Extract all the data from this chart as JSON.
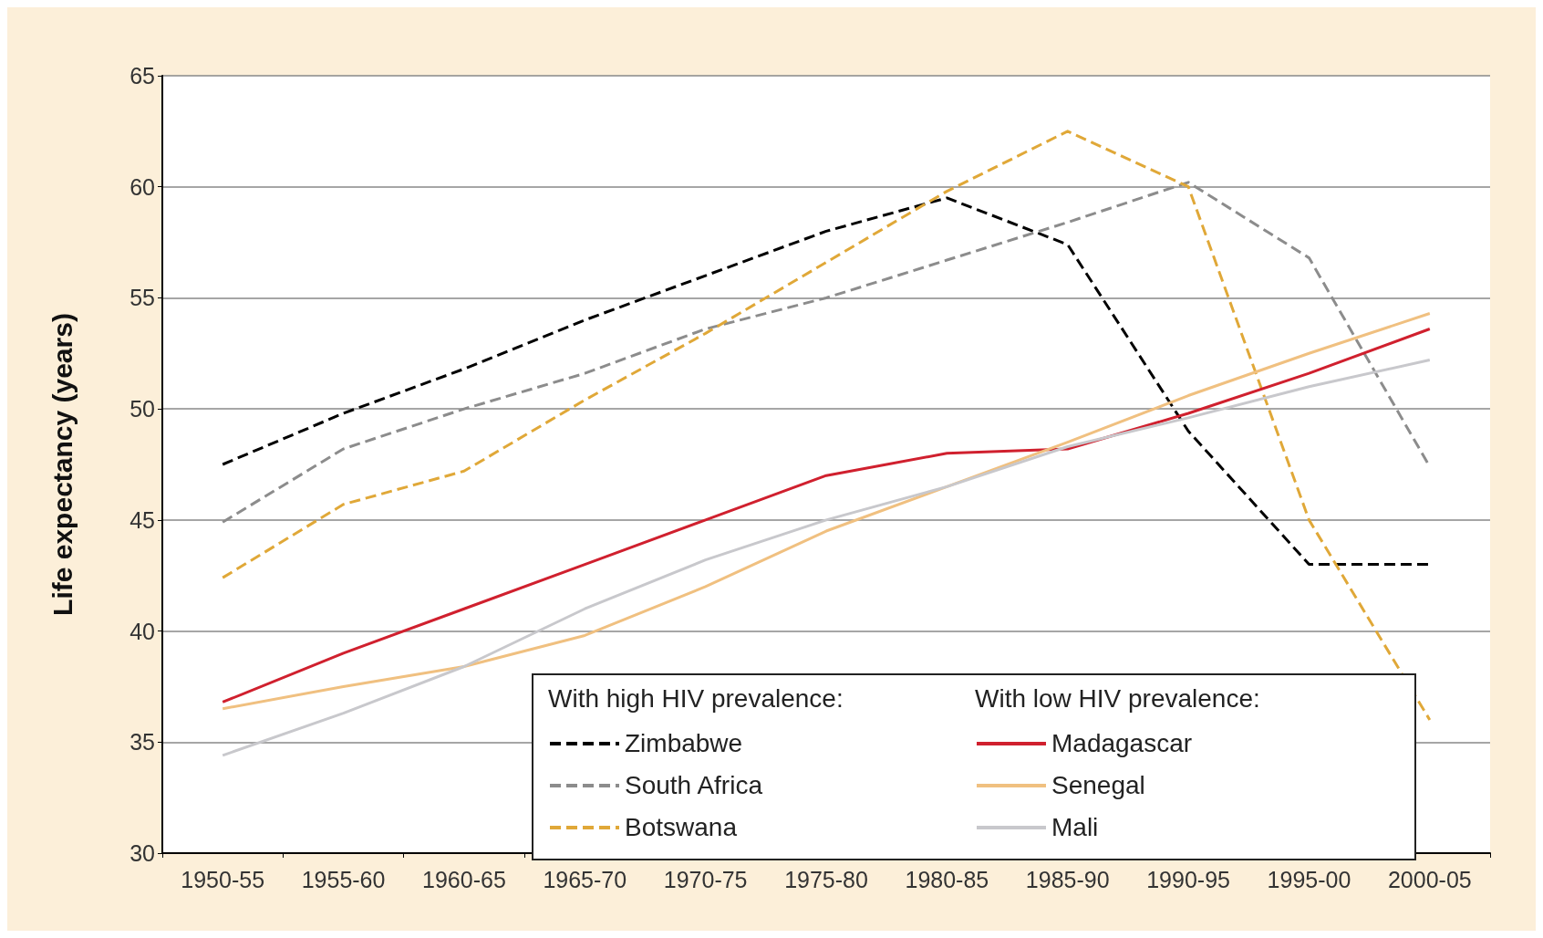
{
  "chart_data": {
    "type": "line",
    "ylabel": "Life expectancy (years)",
    "categories": [
      "1950-55",
      "1955-60",
      "1960-65",
      "1965-70",
      "1970-75",
      "1975-80",
      "1980-85",
      "1985-90",
      "1990-95",
      "1995-00",
      "2000-05"
    ],
    "series": [
      {
        "name": "Zimbabwe",
        "color": "#000000",
        "line_style": "dashed",
        "values": [
          47.5,
          49.8,
          51.8,
          54,
          56,
          58,
          59.5,
          57.4,
          49,
          43,
          43
        ]
      },
      {
        "name": "South Africa",
        "color": "#8c8c8c",
        "line_style": "dashed",
        "values": [
          44.9,
          48.2,
          50,
          51.6,
          53.6,
          55,
          56.7,
          58.4,
          60.2,
          56.8,
          47.4
        ]
      },
      {
        "name": "Botswana",
        "color": "#e0a838",
        "line_style": "dashed",
        "values": [
          42.4,
          45.7,
          47.2,
          50.4,
          53.4,
          56.6,
          59.8,
          62.5,
          60,
          45,
          36
        ]
      },
      {
        "name": "Madagascar",
        "color": "#d0202e",
        "line_style": "solid",
        "values": [
          36.8,
          39,
          41,
          43,
          45,
          47,
          48,
          48.2,
          49.8,
          51.6,
          53.6
        ]
      },
      {
        "name": "Senegal",
        "color": "#f0c080",
        "line_style": "solid",
        "values": [
          36.5,
          37.5,
          38.4,
          39.8,
          42,
          44.5,
          46.5,
          48.5,
          50.6,
          52.5,
          54.3
        ]
      },
      {
        "name": "Mali",
        "color": "#c8c8cc",
        "line_style": "solid",
        "values": [
          34.4,
          36.3,
          38.4,
          41,
          43.2,
          45,
          46.5,
          48.3,
          49.6,
          51,
          52.2
        ]
      }
    ],
    "annotations": [
      "With high HIV prevalence:",
      "With low HIV prevalence:"
    ],
    "ylim": [
      30,
      65
    ],
    "yticks": [
      30,
      35,
      40,
      45,
      50,
      55,
      60,
      65
    ],
    "grid": "y",
    "legend": "bottom right",
    "marker": "none"
  }
}
